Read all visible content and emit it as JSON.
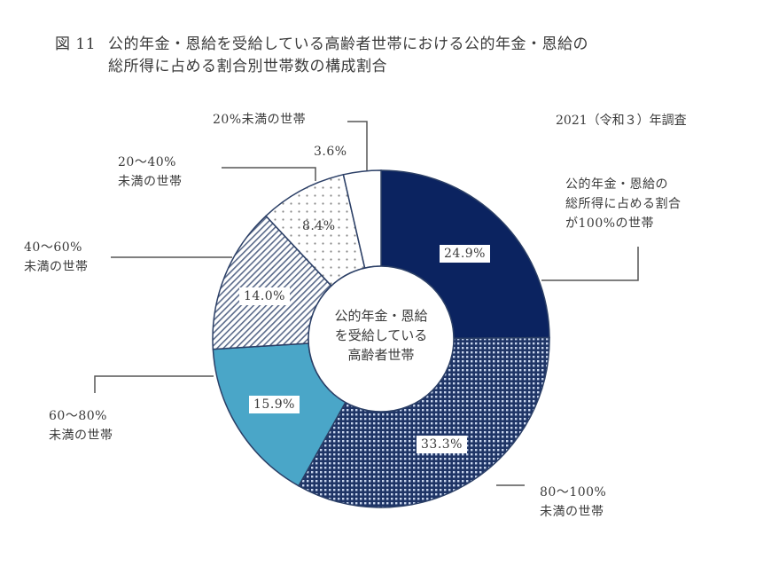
{
  "header": {
    "figure_number": "図 11",
    "title_line1": "公的年金・恩給を受給している高齢者世帯における公的年金・恩給の",
    "title_line2": "総所得に占める割合別世帯数の構成割合"
  },
  "survey_note": "2021（令和３）年調査",
  "center_label": {
    "line1": "公的年金・恩給",
    "line2": "を受給している",
    "line3": "高齢者世帯"
  },
  "labels": {
    "s100": {
      "line1": "公的年金・恩給の",
      "line2": "総所得に占める割合",
      "line3": "が100%の世帯",
      "pct": "24.9%"
    },
    "s80_100": {
      "line1": "80～100%",
      "line2": "未満の世帯",
      "pct": "33.3%"
    },
    "s60_80": {
      "line1": "60～80%",
      "line2": "未満の世帯",
      "pct": "15.9%"
    },
    "s40_60": {
      "line1": "40～60%",
      "line2": "未満の世帯",
      "pct": "14.0%"
    },
    "s20_40": {
      "line1": "20～40%",
      "line2": "未満の世帯",
      "pct": "8.4%"
    },
    "s0_20": {
      "line1": "20%未満の世帯",
      "pct": "3.6%"
    }
  },
  "colors": {
    "navy": "#0b2360",
    "checker_dark": "#1f3566",
    "checker_light": "#c9d6ee",
    "light_blue": "#4aa6c8",
    "outline": "#2b3f66",
    "leader": "#555555"
  },
  "chart_data": {
    "type": "pie",
    "variant": "donut",
    "title": "図 11 公的年金・恩給を受給している高齢者世帯における公的年金・恩給の総所得に占める割合別世帯数の構成割合",
    "subtitle": "2021（令和３）年調査",
    "center_text": "公的年金・恩給を受給している高齢者世帯",
    "start_angle": "12 o'clock",
    "direction": "clockwise",
    "categories": [
      "公的年金・恩給の総所得に占める割合が100%の世帯",
      "80～100%未満の世帯",
      "60～80%未満の世帯",
      "40～60%未満の世帯",
      "20～40%未満の世帯",
      "20%未満の世帯"
    ],
    "values": [
      24.9,
      33.3,
      15.9,
      14.0,
      8.4,
      3.6
    ],
    "unit": "%",
    "fills": [
      "solid navy",
      "navy checker",
      "solid light blue",
      "diagonal hatch",
      "dots",
      "white"
    ]
  }
}
